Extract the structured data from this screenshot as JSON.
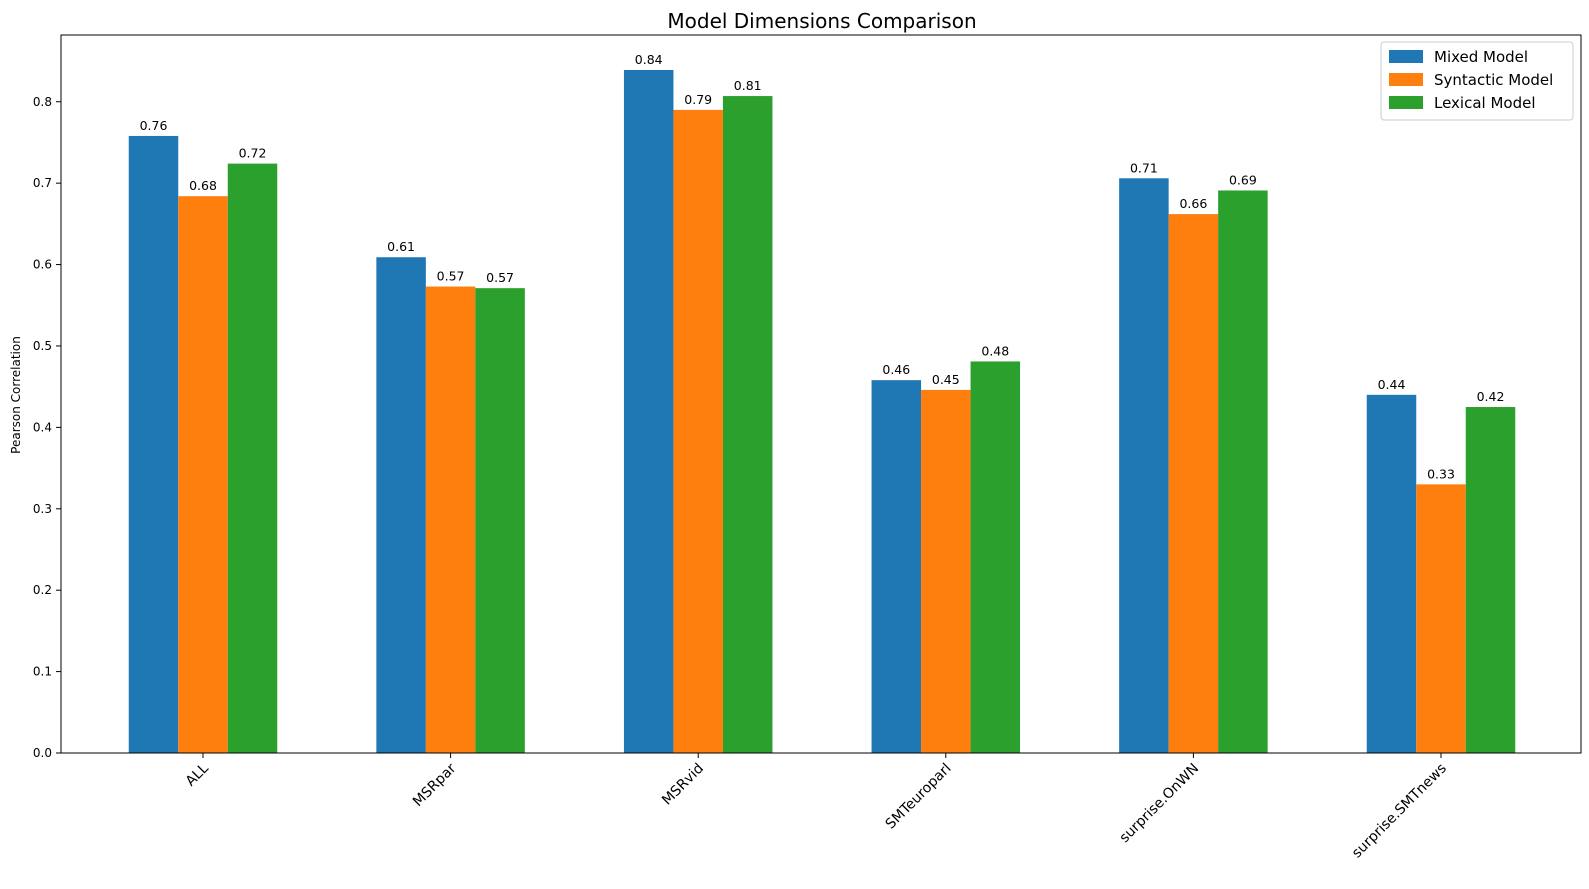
{
  "chart_data": {
    "type": "bar",
    "title": "Model Dimensions Comparison",
    "xlabel": "",
    "ylabel": "Pearson Correlation",
    "ylim": [
      0,
      0.882
    ],
    "yticks": [
      "0.0",
      "0.1",
      "0.2",
      "0.3",
      "0.4",
      "0.5",
      "0.6",
      "0.7",
      "0.8"
    ],
    "categories": [
      "ALL",
      "MSRpar",
      "MSRvid",
      "SMTeuroparl",
      "surprise.OnWN",
      "surprise.SMTnews"
    ],
    "series": [
      {
        "name": "Mixed Model",
        "color": "#1f77b4",
        "values": [
          0.758,
          0.609,
          0.839,
          0.458,
          0.706,
          0.44
        ],
        "labels": [
          "0.76",
          "0.61",
          "0.84",
          "0.46",
          "0.71",
          "0.44"
        ]
      },
      {
        "name": "Syntactic Model",
        "color": "#ff7f0e",
        "values": [
          0.684,
          0.573,
          0.79,
          0.446,
          0.662,
          0.33
        ],
        "labels": [
          "0.68",
          "0.57",
          "0.79",
          "0.45",
          "0.66",
          "0.33"
        ]
      },
      {
        "name": "Lexical Model",
        "color": "#2ca02c",
        "values": [
          0.724,
          0.571,
          0.807,
          0.481,
          0.691,
          0.425
        ],
        "labels": [
          "0.72",
          "0.57",
          "0.81",
          "0.48",
          "0.69",
          "0.42"
        ]
      }
    ],
    "grid": false,
    "legend_position": "top-right"
  }
}
